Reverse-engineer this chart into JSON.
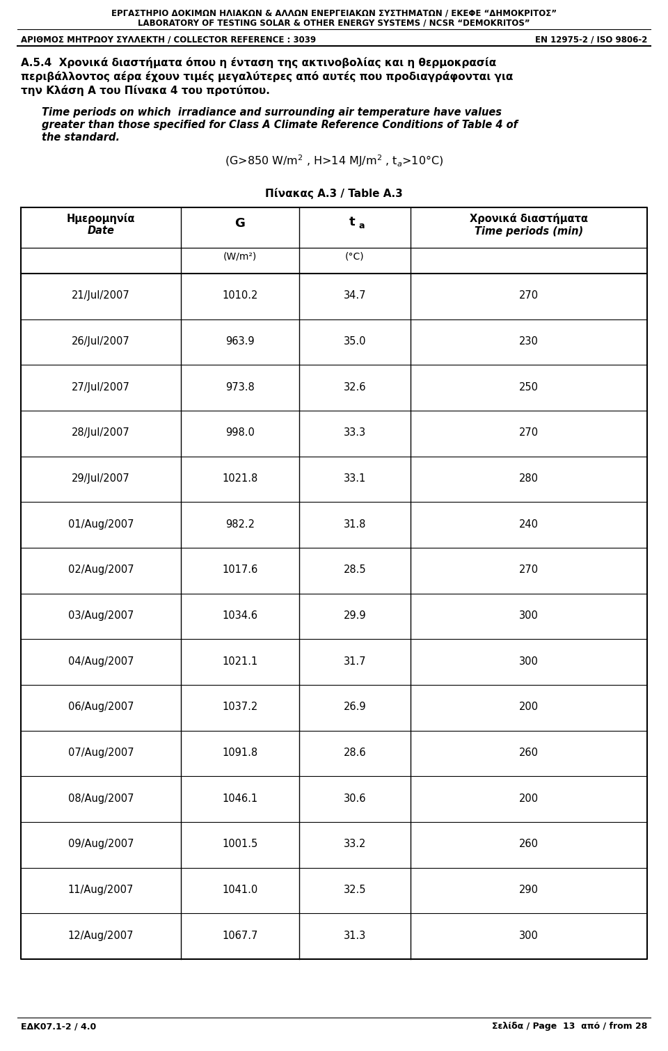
{
  "header_line1": "ΕΡΓΑΣΤΗΡΙΟ ΔΟΚΙΜΩΝ ΗΛΙΑΚΩΝ & ΑΛΛΩΝ ΕΝΕΡΓΕΙΑΚΩΝ ΣΥΣΤΗΜΑΤΩΝ / ΕΚΕΦΕ “ΔΗΜΟΚΡΙΤΟΣ”",
  "header_line2": "LABORATORY OF TESTING SOLAR & OTHER ENERGY SYSTEMS / NCSR “DEMOKRITOS”",
  "header_line3_left": "ΑΡΙΘΜΟΣ ΜΗΤΡΩΟΥ ΣΥΛΛΕΚΤΗ / COLLECTOR REFERENCE : 3039",
  "header_line3_right": "EN 12975-2 / ISO 9806-2",
  "greek_title_line1": "Α.5.4  Χρονικά διαστήματα όπου η ένταση της ακτινοβολίας και η θερμοκρασία",
  "greek_title_line2": "περιβάλλοντος αέρα έχουν τιμές μεγαλύτερες από αυτές που προδιαγράφονται για",
  "greek_title_line3": "την Κλάση Α του Πίνακα 4 του προτύπου.",
  "english_title_line1": "Time periods on which  irradiance and surrounding air temperature have values",
  "english_title_line2": "greater than those specified for Class A Climate Reference Conditions of Table 4 of",
  "english_title_line3": "the standard.",
  "table_title": "Πίνακας Α.3 / Table Α.3",
  "rows": [
    [
      "21/Jul/2007",
      "1010.2",
      "34.7",
      "270"
    ],
    [
      "26/Jul/2007",
      "963.9",
      "35.0",
      "230"
    ],
    [
      "27/Jul/2007",
      "973.8",
      "32.6",
      "250"
    ],
    [
      "28/Jul/2007",
      "998.0",
      "33.3",
      "270"
    ],
    [
      "29/Jul/2007",
      "1021.8",
      "33.1",
      "280"
    ],
    [
      "01/Aug/2007",
      "982.2",
      "31.8",
      "240"
    ],
    [
      "02/Aug/2007",
      "1017.6",
      "28.5",
      "270"
    ],
    [
      "03/Aug/2007",
      "1034.6",
      "29.9",
      "300"
    ],
    [
      "04/Aug/2007",
      "1021.1",
      "31.7",
      "300"
    ],
    [
      "06/Aug/2007",
      "1037.2",
      "26.9",
      "200"
    ],
    [
      "07/Aug/2007",
      "1091.8",
      "28.6",
      "260"
    ],
    [
      "08/Aug/2007",
      "1046.1",
      "30.6",
      "200"
    ],
    [
      "09/Aug/2007",
      "1001.5",
      "33.2",
      "260"
    ],
    [
      "11/Aug/2007",
      "1041.0",
      "32.5",
      "290"
    ],
    [
      "12/Aug/2007",
      "1067.7",
      "31.3",
      "300"
    ]
  ],
  "footer_left": "ΕΔΚ07.1-2 / 4.0",
  "footer_right": "Σελίδα / Page  13  από / from 28"
}
